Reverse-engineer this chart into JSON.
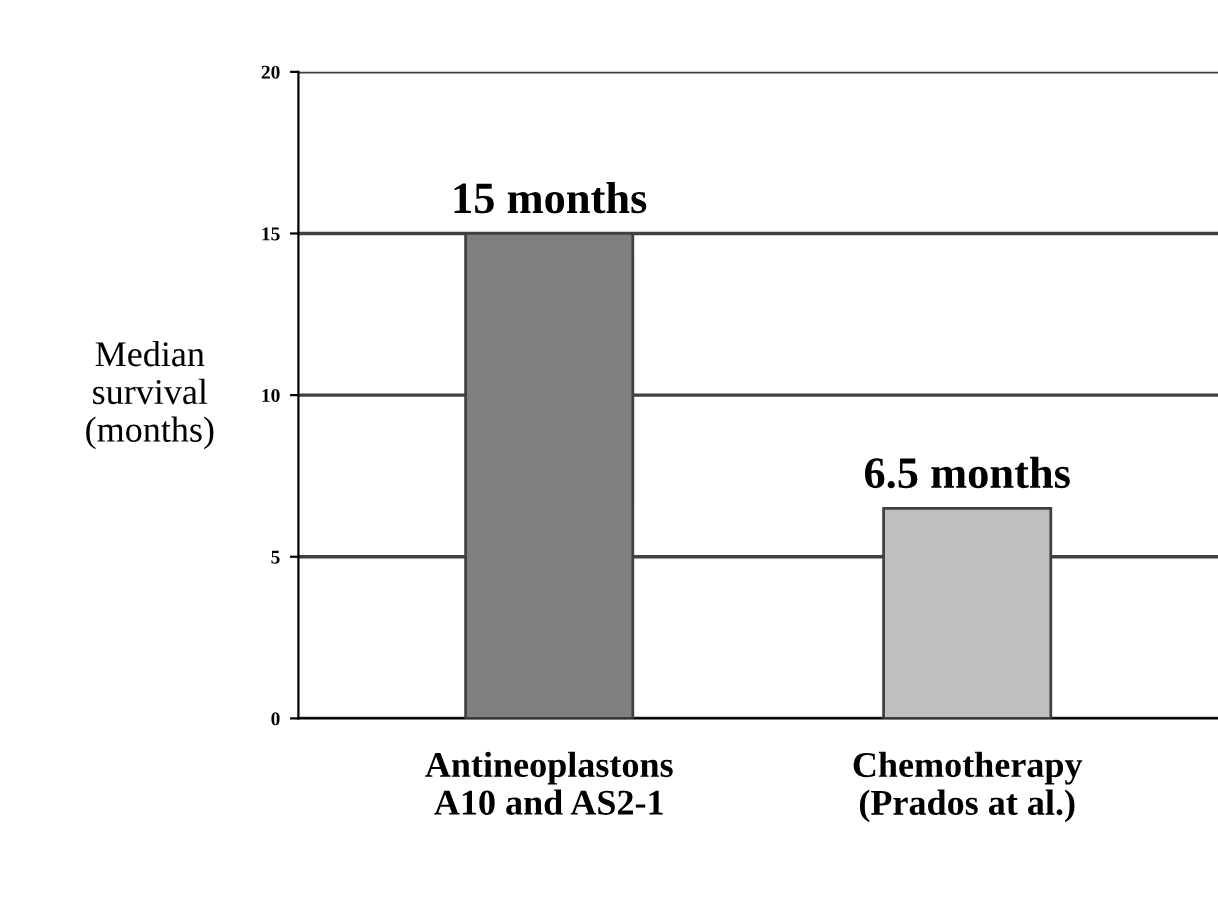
{
  "chart_data": {
    "type": "bar",
    "ylabel": "Median\nsurvival\n(months)",
    "categories": [
      "Antineoplastons\nA10 and AS2-1",
      "Chemotherapy\n(Prados at al.)"
    ],
    "values": [
      15,
      6.5
    ],
    "colors": [
      "#7f7f7f",
      "#bfbfbf"
    ],
    "value_labels": [
      "15 months",
      "6.5 months"
    ],
    "ylim": [
      0,
      20
    ],
    "yticks": [
      0,
      5,
      10,
      15,
      20
    ],
    "grid": "y"
  }
}
